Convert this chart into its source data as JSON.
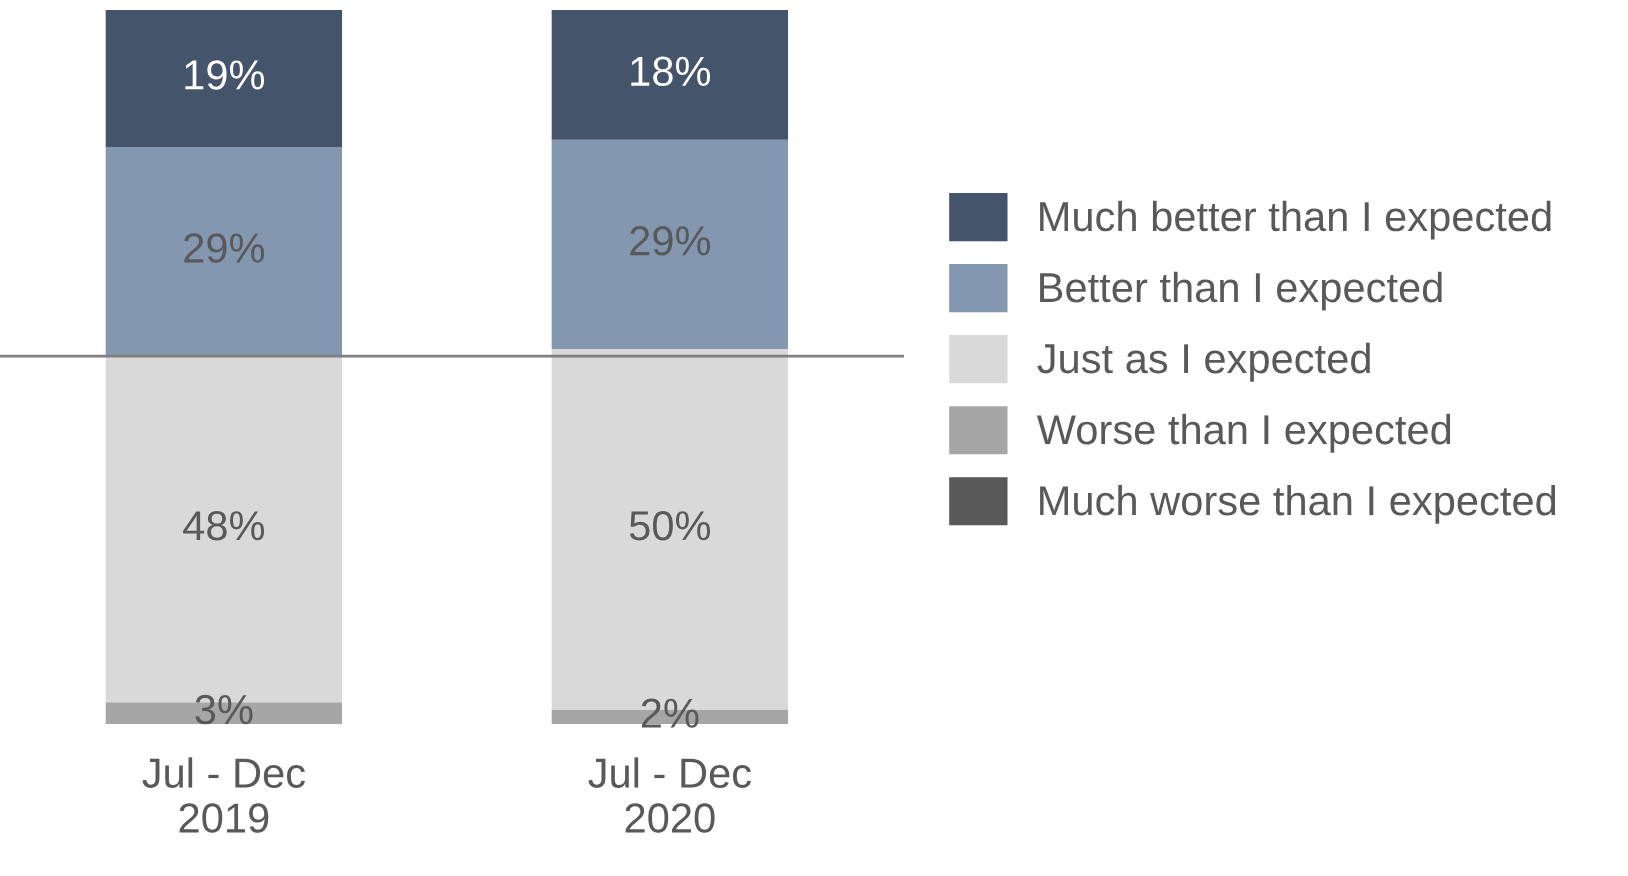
{
  "chart_data": {
    "type": "bar",
    "stacked": true,
    "categories": [
      "Jul - Dec\n2019",
      "Jul - Dec\n2020"
    ],
    "series": [
      {
        "name": "Much worse than I expected",
        "color": "#595959",
        "values": [
          null,
          null
        ]
      },
      {
        "name": "Worse than I expected",
        "color": "#a6a6a6",
        "values": [
          3,
          2
        ],
        "value_labels": [
          "3%",
          "2%"
        ]
      },
      {
        "name": "Just as I expected",
        "color": "#d9d9d9",
        "values": [
          48,
          50
        ],
        "value_labels": [
          "48%",
          "50%"
        ]
      },
      {
        "name": "Better than I expected",
        "color": "#8497b0",
        "values": [
          29,
          29
        ],
        "value_labels": [
          "29%",
          "29%"
        ]
      },
      {
        "name": "Much better than I expected",
        "color": "#44546a",
        "values": [
          19,
          18
        ],
        "value_labels": [
          "19%",
          "18%"
        ]
      }
    ],
    "ref_lines": [
      {
        "axis": "y",
        "value": 51,
        "color": "#7f7f7f"
      }
    ],
    "legend": "right",
    "grid": false
  }
}
